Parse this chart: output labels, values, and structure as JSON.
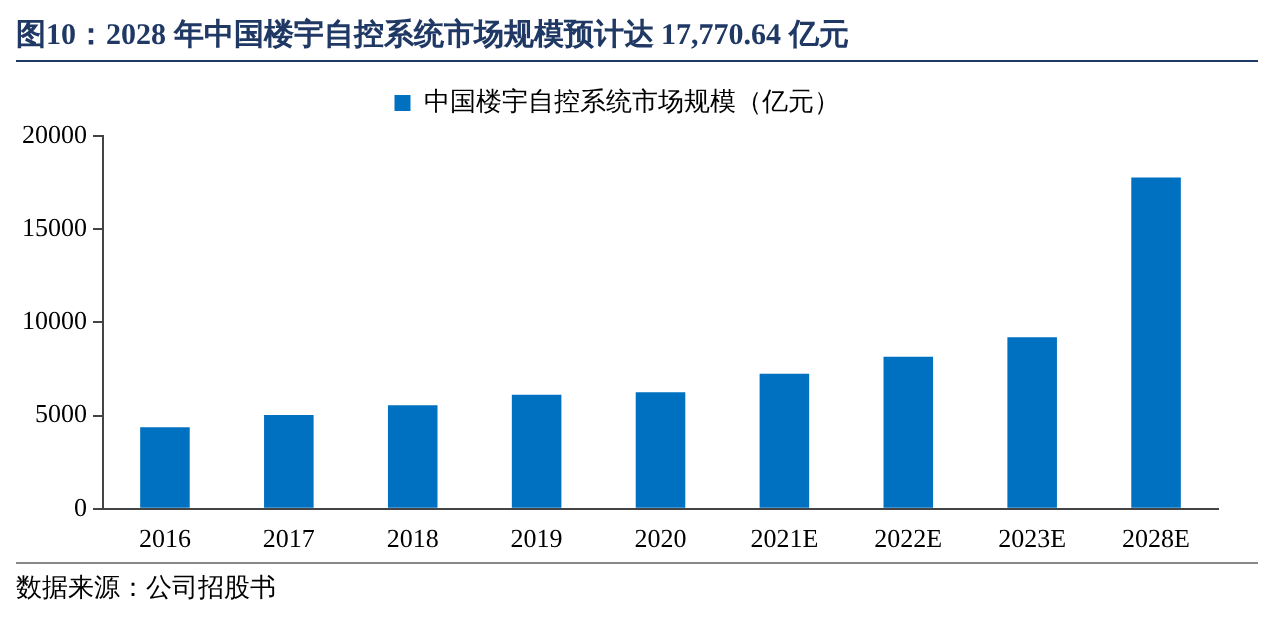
{
  "chart_data": {
    "type": "bar",
    "title": "图10：2028 年中国楼宇自控系统市场规模预计达 17,770.64 亿元",
    "categories": [
      "2016",
      "2017",
      "2018",
      "2019",
      "2020",
      "2021E",
      "2022E",
      "2023E",
      "2028E"
    ],
    "series": [
      {
        "name": "中国楼宇自控系统市场规模（亿元）",
        "color": "#0070c0",
        "values": [
          4380,
          5030,
          5550,
          6120,
          6250,
          7250,
          8160,
          9200,
          17770.64
        ]
      }
    ],
    "ylim": [
      0,
      20000
    ],
    "yticks": [
      0,
      5000,
      10000,
      15000,
      20000
    ],
    "grid": false,
    "legend": "top",
    "annotations": [
      "数据来源：公司招股书"
    ]
  }
}
